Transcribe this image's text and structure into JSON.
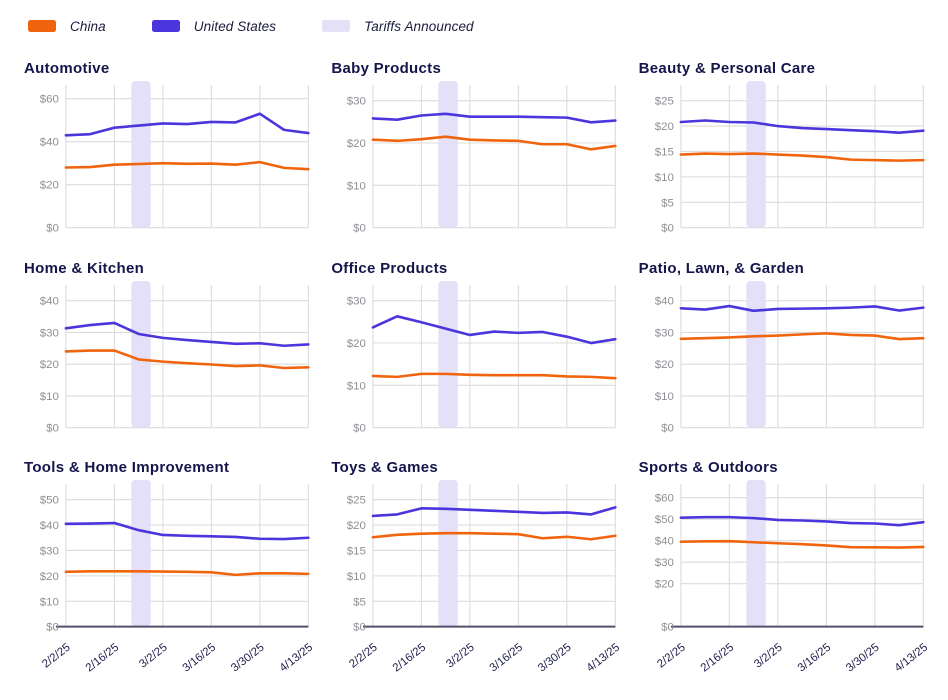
{
  "legend": {
    "items": [
      {
        "label": "China",
        "color": "#f1640e",
        "type": "line"
      },
      {
        "label": "United States",
        "color": "#4b35dd",
        "type": "line"
      },
      {
        "label": "Tariffs Announced",
        "color": "#e3e0f8",
        "type": "band"
      }
    ]
  },
  "colors": {
    "china": "#f1640e",
    "united_states": "#4b35dd",
    "tariff_band": "#e3e0f8",
    "gridline": "#dcdcdc",
    "bottom_axis": "#50506a",
    "y_tick_text": "#8f8f95",
    "x_tick_text": "#21214e",
    "title_text": "#15154a"
  },
  "x_dates": [
    "2/2/25",
    "2/9/25",
    "2/16/25",
    "2/23/25",
    "3/2/25",
    "3/9/25",
    "3/16/25",
    "3/23/25",
    "3/30/25",
    "4/6/25",
    "4/13/25"
  ],
  "x_tick_indices": [
    0,
    2,
    4,
    6,
    8,
    10
  ],
  "x_tick_labels": [
    "2/2/25",
    "2/16/25",
    "3/2/25",
    "3/16/25",
    "3/30/25",
    "4/13/25"
  ],
  "tariffs_band": {
    "label": "Tariffs Announced",
    "x_start_index": 2.7,
    "x_end_index": 3.5
  },
  "chart_data": [
    {
      "type": "line",
      "title": "Automotive",
      "ylim": [
        0,
        65
      ],
      "yticks": [
        0,
        20,
        40,
        60
      ],
      "ytick_labels": [
        "$0",
        "$20",
        "$40",
        "$60"
      ],
      "series": [
        {
          "name": "United States",
          "values": [
            43,
            43.5,
            46.5,
            47.5,
            48.5,
            48.2,
            49.2,
            49,
            53,
            45.5,
            44
          ]
        },
        {
          "name": "China",
          "values": [
            28,
            28.2,
            29.3,
            29.6,
            30,
            29.7,
            29.8,
            29.3,
            30.5,
            27.8,
            27.2
          ]
        }
      ]
    },
    {
      "type": "line",
      "title": "Baby Products",
      "ylim": [
        0,
        33
      ],
      "yticks": [
        0,
        10,
        20,
        30
      ],
      "ytick_labels": [
        "$0",
        "$10",
        "$20",
        "$30"
      ],
      "series": [
        {
          "name": "United States",
          "values": [
            25.8,
            25.5,
            26.5,
            26.9,
            26.2,
            26.2,
            26.2,
            26.1,
            26,
            24.9,
            25.3
          ]
        },
        {
          "name": "China",
          "values": [
            20.8,
            20.5,
            20.9,
            21.5,
            20.8,
            20.6,
            20.5,
            19.7,
            19.7,
            18.5,
            19.3
          ]
        }
      ]
    },
    {
      "type": "line",
      "title": "Beauty & Personal Care",
      "ylim": [
        0,
        27.5
      ],
      "yticks": [
        0,
        5,
        10,
        15,
        20,
        25
      ],
      "ytick_labels": [
        "$0",
        "$5",
        "$10",
        "$15",
        "$20",
        "$25"
      ],
      "series": [
        {
          "name": "United States",
          "values": [
            20.8,
            21.1,
            20.8,
            20.7,
            20,
            19.6,
            19.4,
            19.2,
            19,
            18.7,
            19.1
          ]
        },
        {
          "name": "China",
          "values": [
            14.4,
            14.6,
            14.5,
            14.6,
            14.4,
            14.2,
            13.9,
            13.4,
            13.3,
            13.2,
            13.3
          ]
        }
      ]
    },
    {
      "type": "line",
      "title": "Home & Kitchen",
      "ylim": [
        0,
        44
      ],
      "yticks": [
        0,
        10,
        20,
        30,
        40
      ],
      "ytick_labels": [
        "$0",
        "$10",
        "$20",
        "$30",
        "$40"
      ],
      "series": [
        {
          "name": "United States",
          "values": [
            31.3,
            32.3,
            33,
            29.5,
            28.3,
            27.6,
            27,
            26.4,
            26.6,
            25.8,
            26.2
          ]
        },
        {
          "name": "China",
          "values": [
            24,
            24.3,
            24.3,
            21.5,
            20.8,
            20.3,
            19.9,
            19.4,
            19.6,
            18.8,
            19
          ]
        }
      ]
    },
    {
      "type": "line",
      "title": "Office Products",
      "ylim": [
        0,
        33
      ],
      "yticks": [
        0,
        10,
        20,
        30
      ],
      "ytick_labels": [
        "$0",
        "$10",
        "$20",
        "$30"
      ],
      "series": [
        {
          "name": "United States",
          "values": [
            23.7,
            26.3,
            24.9,
            23.4,
            21.9,
            22.7,
            22.4,
            22.6,
            21.5,
            20,
            20.9
          ]
        },
        {
          "name": "China",
          "values": [
            12.2,
            12,
            12.7,
            12.7,
            12.5,
            12.4,
            12.4,
            12.4,
            12.1,
            12,
            11.7
          ]
        }
      ]
    },
    {
      "type": "line",
      "title": "Patio, Lawn, & Garden",
      "ylim": [
        0,
        44
      ],
      "yticks": [
        0,
        10,
        20,
        30,
        40
      ],
      "ytick_labels": [
        "$0",
        "$10",
        "$20",
        "$30",
        "$40"
      ],
      "series": [
        {
          "name": "United States",
          "values": [
            37.6,
            37.2,
            38.3,
            36.8,
            37.4,
            37.5,
            37.6,
            37.8,
            38.2,
            36.9,
            37.8
          ]
        },
        {
          "name": "China",
          "values": [
            28,
            28.2,
            28.4,
            28.8,
            29,
            29.4,
            29.7,
            29.2,
            29,
            27.9,
            28.2
          ]
        }
      ]
    },
    {
      "type": "line",
      "title": "Tools & Home Improvement",
      "ylim": [
        0,
        55
      ],
      "yticks": [
        0,
        10,
        20,
        30,
        40,
        50
      ],
      "ytick_labels": [
        "$0",
        "$10",
        "$20",
        "$30",
        "$40",
        "$50"
      ],
      "series": [
        {
          "name": "United States",
          "values": [
            40.5,
            40.6,
            40.8,
            38,
            36.1,
            35.8,
            35.6,
            35.3,
            34.6,
            34.5,
            35
          ]
        },
        {
          "name": "China",
          "values": [
            21.6,
            21.8,
            21.8,
            21.8,
            21.7,
            21.6,
            21.4,
            20.4,
            21,
            21,
            20.8
          ]
        }
      ]
    },
    {
      "type": "line",
      "title": "Toys & Games",
      "ylim": [
        0,
        27.5
      ],
      "yticks": [
        0,
        5,
        10,
        15,
        20,
        25
      ],
      "ytick_labels": [
        "$0",
        "$5",
        "$10",
        "$15",
        "$20",
        "$25"
      ],
      "series": [
        {
          "name": "United States",
          "values": [
            21.8,
            22.1,
            23.3,
            23.2,
            23,
            22.8,
            22.6,
            22.4,
            22.5,
            22.1,
            23.5
          ]
        },
        {
          "name": "China",
          "values": [
            17.6,
            18.1,
            18.3,
            18.4,
            18.4,
            18.3,
            18.2,
            17.4,
            17.7,
            17.2,
            17.9
          ]
        }
      ]
    },
    {
      "type": "line",
      "title": "Sports & Outdoors",
      "ylim": [
        0,
        65
      ],
      "yticks": [
        0,
        20,
        30,
        40,
        50,
        60
      ],
      "ytick_labels": [
        "$0",
        "$20",
        "$30",
        "$40",
        "$50",
        "$60"
      ],
      "series": [
        {
          "name": "United States",
          "values": [
            50.7,
            51,
            51,
            50.5,
            49.7,
            49.4,
            49,
            48.2,
            48,
            47.2,
            48.6
          ]
        },
        {
          "name": "China",
          "values": [
            39.5,
            39.7,
            39.8,
            39.3,
            38.8,
            38.4,
            37.8,
            37,
            36.9,
            36.8,
            37.1
          ]
        }
      ]
    }
  ]
}
